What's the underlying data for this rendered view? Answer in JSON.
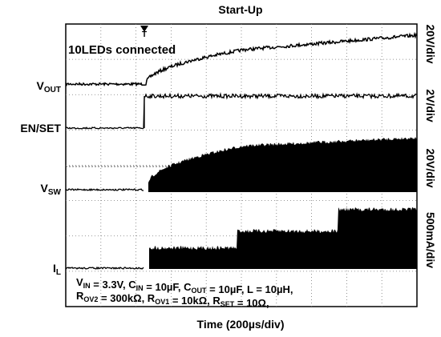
{
  "header": {
    "title": "Start-Up"
  },
  "channels": [
    {
      "label": "V",
      "sub": "OUT",
      "scale": "20V/div"
    },
    {
      "label": "EN/SET",
      "sub": null,
      "scale": "2V/div"
    },
    {
      "label": "V",
      "sub": "SW",
      "scale": "20V/div"
    },
    {
      "label": "I",
      "sub": "L",
      "scale": "500mA/div"
    }
  ],
  "trigger": "T",
  "annotation": "10LEDs connected",
  "conditions": [
    [
      "V",
      {
        "sub": "IN"
      },
      " = 3.3V, C",
      {
        "sub": "IN"
      },
      " = 10µF, C",
      {
        "sub": "OUT"
      },
      " = 10µF, L = 10µH,"
    ],
    [
      "R",
      {
        "sub": "OV2"
      },
      " = 300kΩ, R",
      {
        "sub": "OV1"
      },
      " = 10kΩ, R",
      {
        "sub": "SET"
      },
      " = 10Ω,"
    ]
  ],
  "x_label": "Time (200µs/div)"
}
